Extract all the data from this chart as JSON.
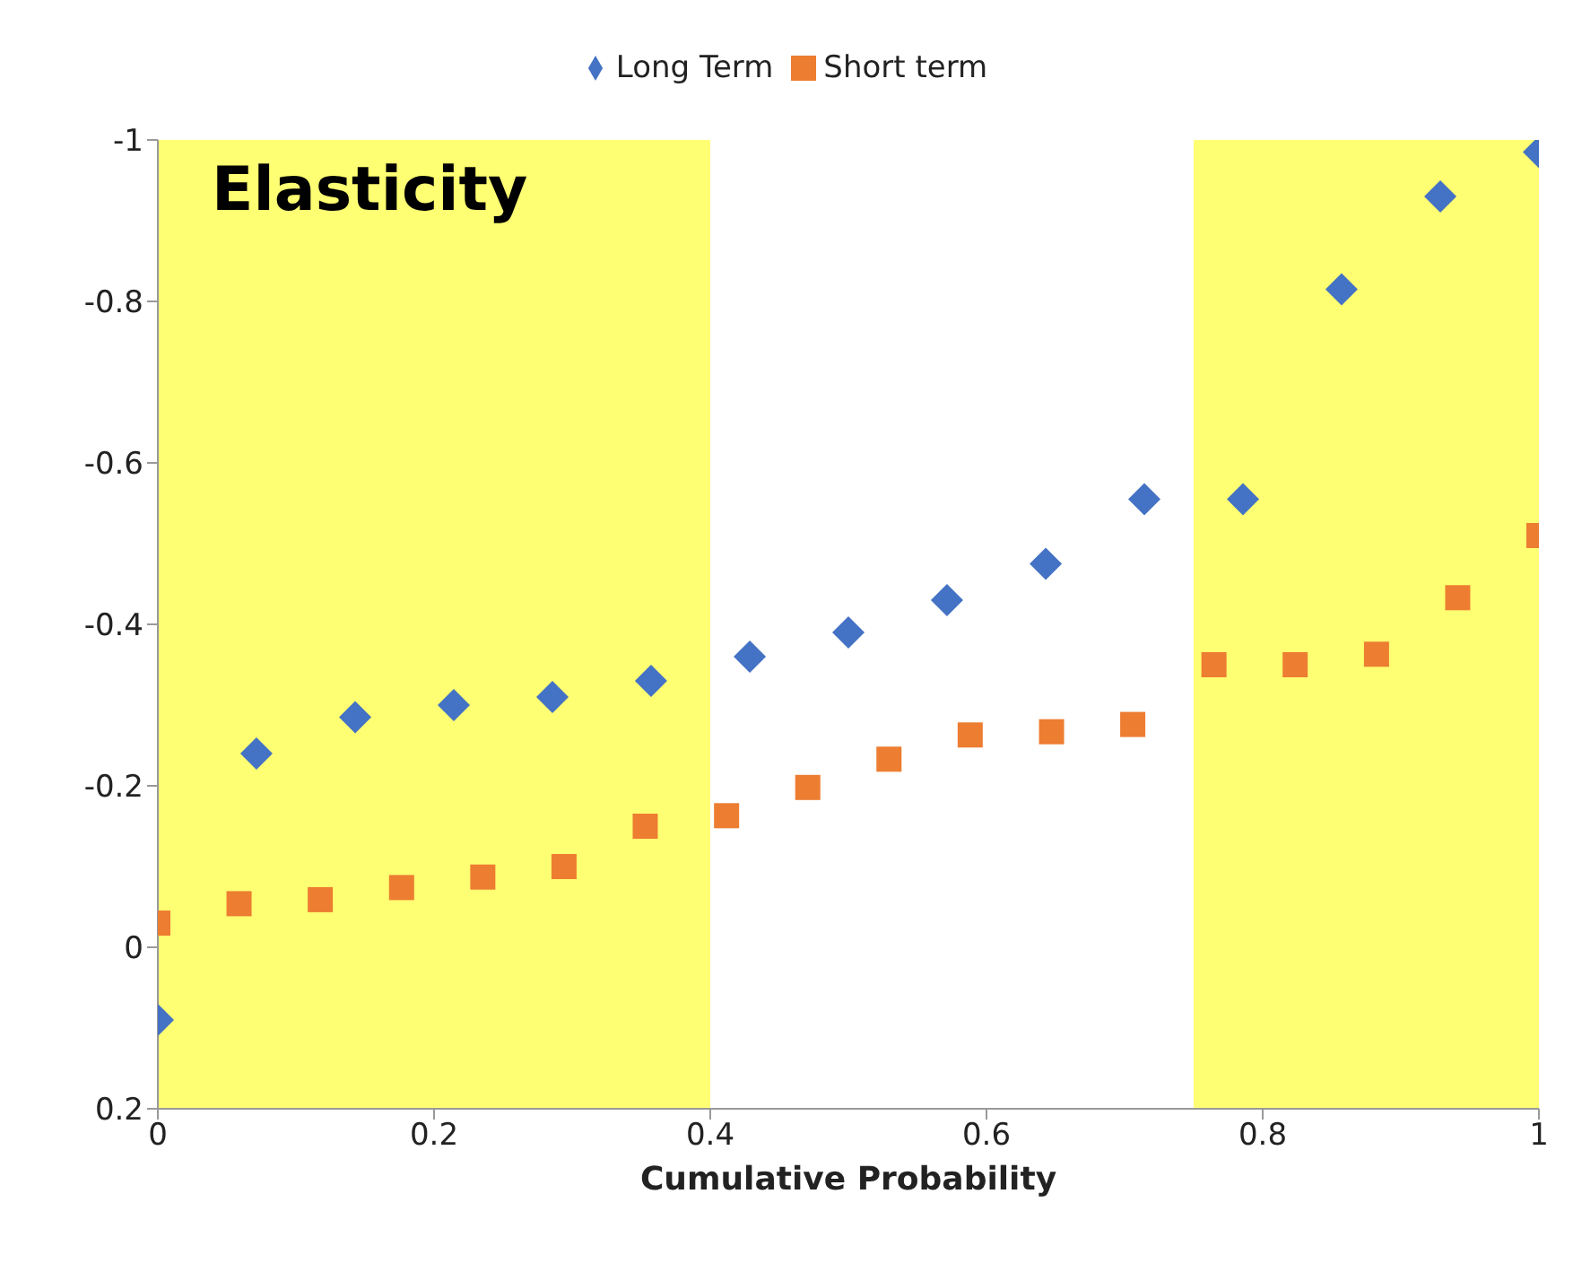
{
  "chart_data": {
    "type": "scatter",
    "title": "Elasticity",
    "xlabel": "Cumulative Probability",
    "xlim": [
      0,
      1
    ],
    "xticks": [
      0,
      0.2,
      0.4,
      0.6,
      0.8,
      1
    ],
    "ylim": [
      0.2,
      -1
    ],
    "yticks": [
      0.2,
      0,
      -0.2,
      -0.4,
      -0.6,
      -0.8,
      -1
    ],
    "grid": false,
    "legend": "top",
    "series": [
      {
        "name": "Short term",
        "color": "#ed7d31",
        "marker": "square",
        "x": [
          0,
          0.0588,
          0.1176,
          0.1765,
          0.2353,
          0.2941,
          0.3529,
          0.4118,
          0.4706,
          0.5294,
          0.5882,
          0.6471,
          0.7059,
          0.7647,
          0.8235,
          0.8824,
          0.9412,
          1
        ],
        "values": [
          -0.03,
          -0.054,
          -0.059,
          -0.074,
          -0.087,
          -0.1,
          -0.15,
          -0.163,
          -0.198,
          -0.233,
          -0.263,
          -0.267,
          -0.276,
          -0.35,
          -0.35,
          -0.363,
          -0.433,
          -0.51
        ]
      },
      {
        "name": "Long Term",
        "color": "#4472c4",
        "marker": "diamond",
        "x": [
          0,
          0.0714,
          0.1429,
          0.2143,
          0.2857,
          0.3571,
          0.4286,
          0.5,
          0.5714,
          0.6429,
          0.7143,
          0.7857,
          0.8571,
          0.9286,
          1
        ],
        "values": [
          0.09,
          -0.24,
          -0.285,
          -0.3,
          -0.31,
          -0.33,
          -0.36,
          -0.39,
          -0.43,
          -0.475,
          -0.555,
          -0.555,
          -0.815,
          -0.93,
          -0.985
        ]
      }
    ],
    "bands": [
      {
        "axis": "x",
        "from": 0,
        "to": 0.035,
        "color": "#ffff00"
      },
      {
        "axis": "x",
        "from": 0.035,
        "to": 0.4,
        "color": "#ffff00"
      },
      {
        "axis": "x",
        "from": 0.75,
        "to": 1,
        "color": "#ffff00"
      }
    ]
  }
}
